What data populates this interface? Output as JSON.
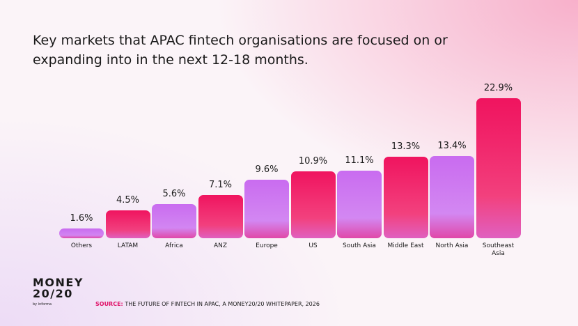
{
  "chart_data": {
    "type": "bar",
    "title": "Key markets that APAC fintech organisations are focused on or expanding into in the next 12-18 months.",
    "categories": [
      "Others",
      "LATAM",
      "Africa",
      "ANZ",
      "Europe",
      "US",
      "South Asia",
      "Middle East",
      "North Asia",
      "Southeast Asia"
    ],
    "values": [
      1.6,
      4.5,
      5.6,
      7.1,
      9.6,
      10.9,
      11.1,
      13.3,
      13.4,
      22.9
    ],
    "value_labels": [
      "1.6%",
      "4.5%",
      "5.6%",
      "7.1%",
      "9.6%",
      "10.9%",
      "11.1%",
      "13.3%",
      "13.4%",
      "22.9%"
    ],
    "colors": [
      "#c96cf0",
      "#f0145f",
      "#c96cf0",
      "#f0145f",
      "#c96cf0",
      "#f0145f",
      "#c96cf0",
      "#f0145f",
      "#c96cf0",
      "#f0145f"
    ],
    "logo": [
      "MONEY",
      "20/20",
      "by informa"
    ],
    "source_label": "SOURCE:",
    "source_text": "THE FUTURE OF FINTECH IN APAC, A MONEY20/20 WHITEPAPER, 2026"
  }
}
